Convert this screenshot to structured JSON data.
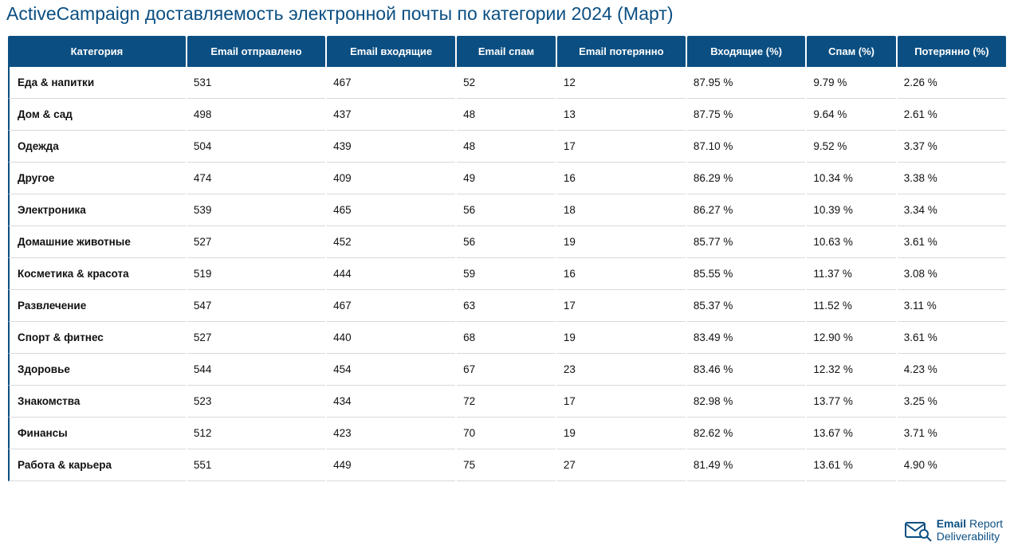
{
  "title": "ActiveCampaign доставляемость электронной почты по категории 2024 (Март)",
  "colors": {
    "header_bg": "#0b4f82",
    "header_text": "#ffffff",
    "title_color": "#0b4f82",
    "row_border": "#d8d8d8",
    "cell_text": "#111111",
    "cat_left_border": "#0b4f82",
    "logo_color": "#0b4f82"
  },
  "typography": {
    "title_fontsize": 23,
    "header_fontsize": 13,
    "cell_fontsize": 13.5,
    "footer_fontsize": 14
  },
  "table": {
    "columns": [
      {
        "key": "category",
        "label": "Категория",
        "width_pct": 18,
        "align": "left"
      },
      {
        "key": "sent",
        "label": "Email отправлено",
        "width_pct": 14,
        "align": "left"
      },
      {
        "key": "inbox",
        "label": "Email входящие",
        "width_pct": 13,
        "align": "left"
      },
      {
        "key": "spam",
        "label": "Email спам",
        "width_pct": 10,
        "align": "left"
      },
      {
        "key": "lost",
        "label": "Email потерянно",
        "width_pct": 13,
        "align": "left"
      },
      {
        "key": "inbox_pct",
        "label": "Входящие (%)",
        "width_pct": 12,
        "align": "left"
      },
      {
        "key": "spam_pct",
        "label": "Спам (%)",
        "width_pct": 9,
        "align": "left"
      },
      {
        "key": "lost_pct",
        "label": "Потерянно (%)",
        "width_pct": 11,
        "align": "left"
      }
    ],
    "rows": [
      {
        "category": "Еда & напитки",
        "sent": "531",
        "inbox": "467",
        "spam": "52",
        "lost": "12",
        "inbox_pct": "87.95 %",
        "spam_pct": "9.79 %",
        "lost_pct": "2.26 %"
      },
      {
        "category": "Дом & сад",
        "sent": "498",
        "inbox": "437",
        "spam": "48",
        "lost": "13",
        "inbox_pct": "87.75 %",
        "spam_pct": "9.64 %",
        "lost_pct": "2.61 %"
      },
      {
        "category": "Одежда",
        "sent": "504",
        "inbox": "439",
        "spam": "48",
        "lost": "17",
        "inbox_pct": "87.10 %",
        "spam_pct": "9.52 %",
        "lost_pct": "3.37 %"
      },
      {
        "category": "Другое",
        "sent": "474",
        "inbox": "409",
        "spam": "49",
        "lost": "16",
        "inbox_pct": "86.29 %",
        "spam_pct": "10.34 %",
        "lost_pct": "3.38 %"
      },
      {
        "category": "Электроника",
        "sent": "539",
        "inbox": "465",
        "spam": "56",
        "lost": "18",
        "inbox_pct": "86.27 %",
        "spam_pct": "10.39 %",
        "lost_pct": "3.34 %"
      },
      {
        "category": "Домашние животные",
        "sent": "527",
        "inbox": "452",
        "spam": "56",
        "lost": "19",
        "inbox_pct": "85.77 %",
        "spam_pct": "10.63 %",
        "lost_pct": "3.61 %"
      },
      {
        "category": "Косметика & красота",
        "sent": "519",
        "inbox": "444",
        "spam": "59",
        "lost": "16",
        "inbox_pct": "85.55 %",
        "spam_pct": "11.37 %",
        "lost_pct": "3.08 %"
      },
      {
        "category": "Развлечение",
        "sent": "547",
        "inbox": "467",
        "spam": "63",
        "lost": "17",
        "inbox_pct": "85.37 %",
        "spam_pct": "11.52 %",
        "lost_pct": "3.11 %"
      },
      {
        "category": "Спорт & фитнес",
        "sent": "527",
        "inbox": "440",
        "spam": "68",
        "lost": "19",
        "inbox_pct": "83.49 %",
        "spam_pct": "12.90 %",
        "lost_pct": "3.61 %"
      },
      {
        "category": "Здоровье",
        "sent": "544",
        "inbox": "454",
        "spam": "67",
        "lost": "23",
        "inbox_pct": "83.46 %",
        "spam_pct": "12.32 %",
        "lost_pct": "4.23 %"
      },
      {
        "category": "Знакомства",
        "sent": "523",
        "inbox": "434",
        "spam": "72",
        "lost": "17",
        "inbox_pct": "82.98 %",
        "spam_pct": "13.77 %",
        "lost_pct": "3.25 %"
      },
      {
        "category": "Финансы",
        "sent": "512",
        "inbox": "423",
        "spam": "70",
        "lost": "19",
        "inbox_pct": "82.62 %",
        "spam_pct": "13.67 %",
        "lost_pct": "3.71 %"
      },
      {
        "category": "Работа & карьера",
        "sent": "551",
        "inbox": "449",
        "spam": "75",
        "lost": "27",
        "inbox_pct": "81.49 %",
        "spam_pct": "13.61 %",
        "lost_pct": "4.90 %"
      }
    ]
  },
  "footer": {
    "line1a": "Email",
    "line1b": "Report",
    "line2": "Deliverability",
    "icon": "envelope-magnifier"
  }
}
